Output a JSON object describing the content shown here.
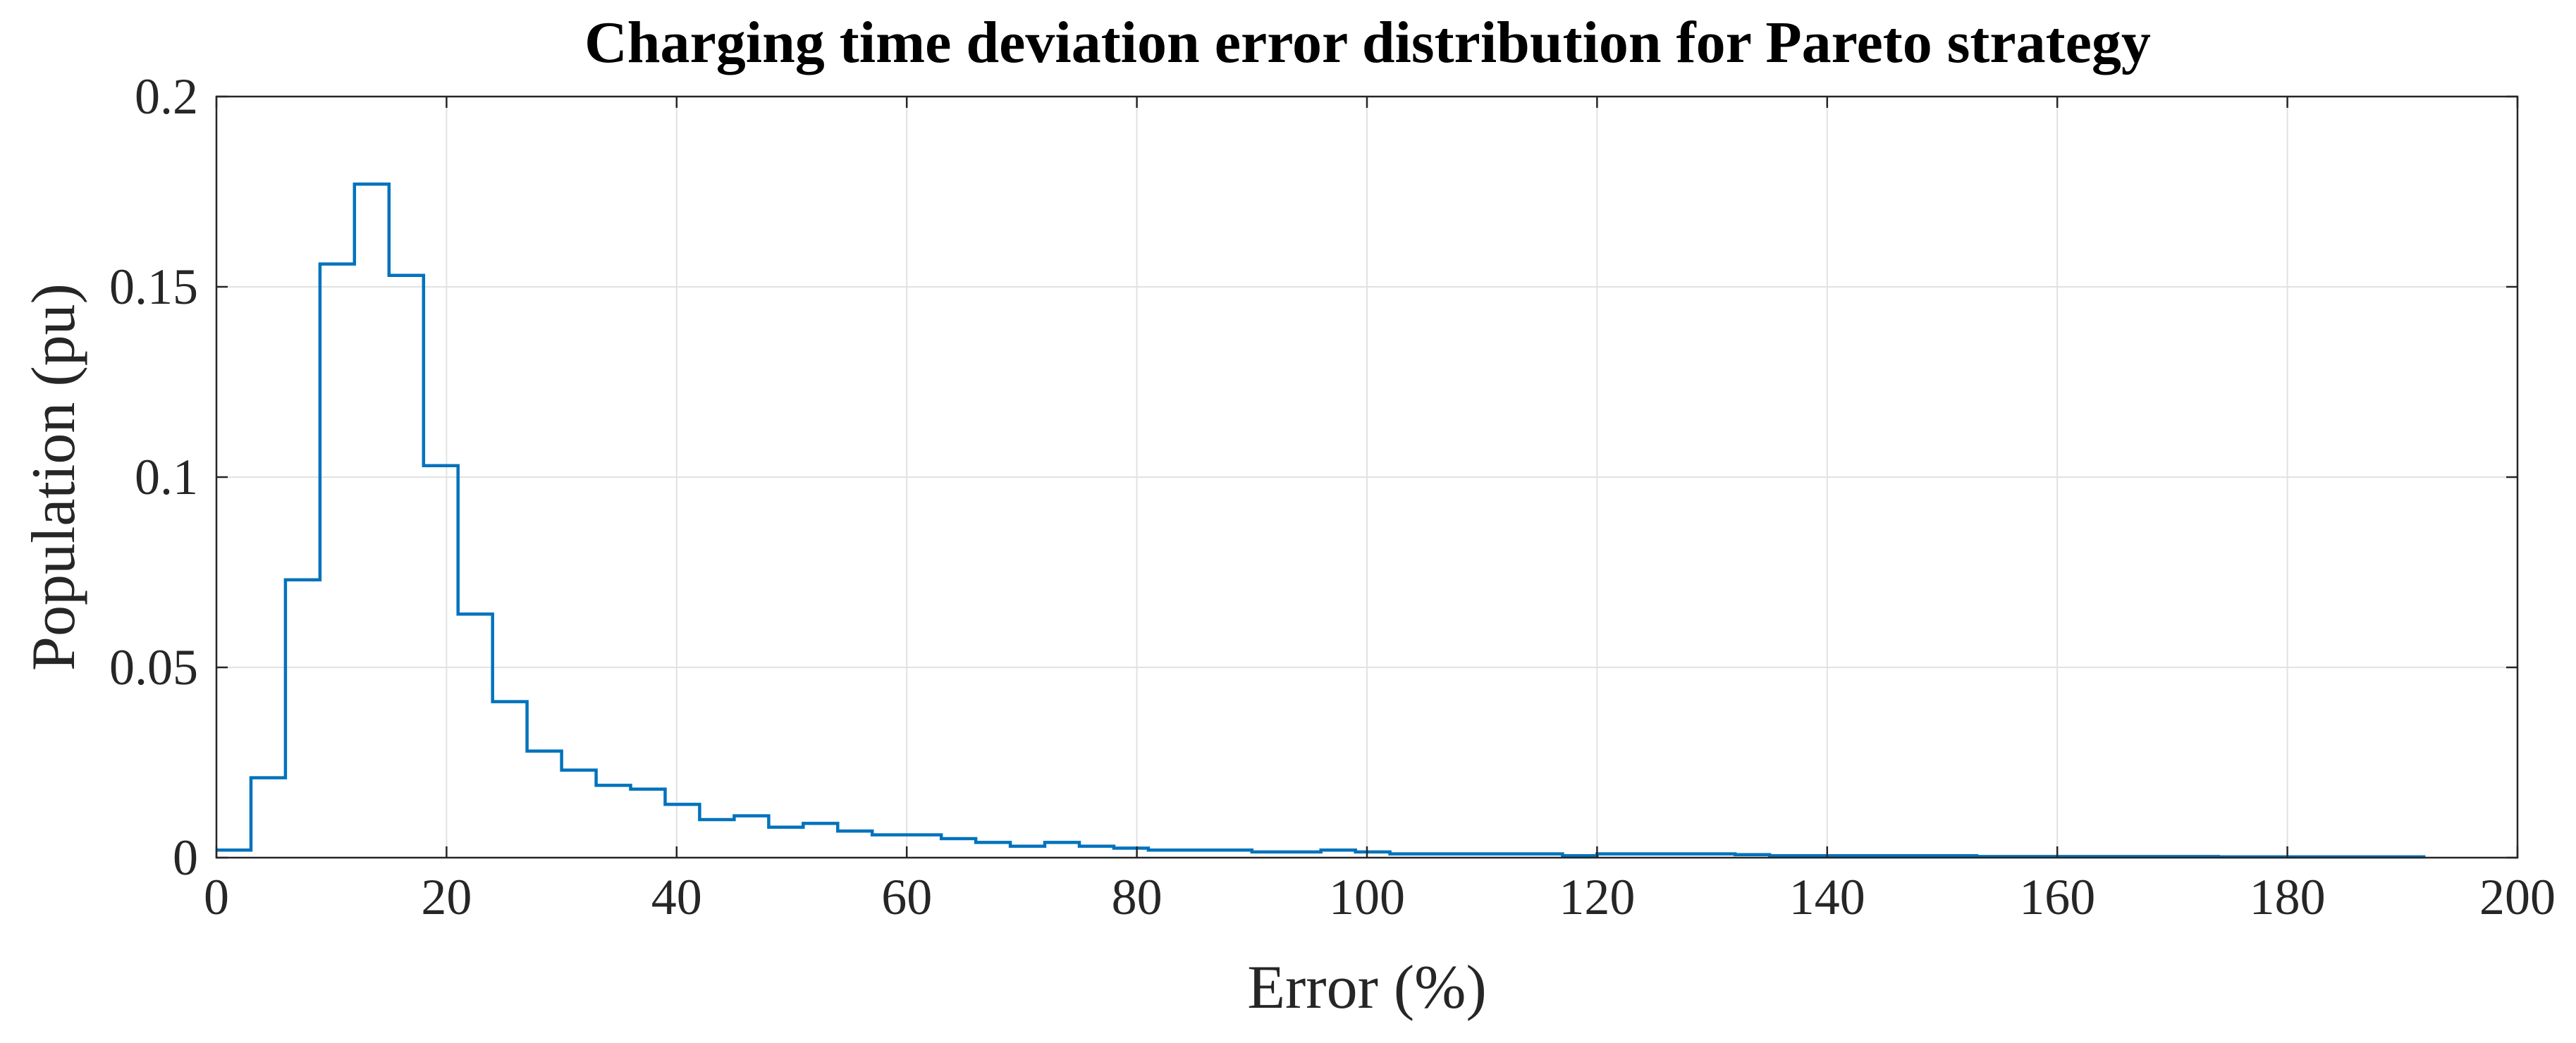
{
  "chart_data": {
    "type": "histogram",
    "style": "stairs",
    "title": "Charging time deviation error distribution for Pareto strategy",
    "xlabel": "Error (%)",
    "ylabel": "Population (pu)",
    "xlim": [
      0,
      200
    ],
    "ylim": [
      0,
      0.2
    ],
    "xticks": [
      0,
      20,
      40,
      60,
      80,
      100,
      120,
      140,
      160,
      180,
      200
    ],
    "yticks": [
      0,
      0.05,
      0.1,
      0.15,
      0.2
    ],
    "xtick_labels": [
      "0",
      "20",
      "40",
      "60",
      "80",
      "100",
      "120",
      "140",
      "160",
      "180",
      "200"
    ],
    "ytick_labels": [
      "0",
      "0.05",
      "0.1",
      "0.15",
      "0.2"
    ],
    "grid": true,
    "line_color": "#0072bd",
    "bin_start": 0,
    "bin_width": 3,
    "values": [
      0.002,
      0.021,
      0.073,
      0.156,
      0.177,
      0.153,
      0.103,
      0.064,
      0.041,
      0.028,
      0.023,
      0.019,
      0.018,
      0.014,
      0.01,
      0.011,
      0.008,
      0.009,
      0.007,
      0.006,
      0.006,
      0.005,
      0.004,
      0.003,
      0.004,
      0.003,
      0.0025,
      0.002,
      0.002,
      0.002,
      0.0015,
      0.0015,
      0.002,
      0.0015,
      0.001,
      0.001,
      0.001,
      0.001,
      0.001,
      0.0005,
      0.001,
      0.001,
      0.001,
      0.001,
      0.0008,
      0.0005,
      0.0005,
      0.0005,
      0.0005,
      0.0005,
      0.0005,
      0.0003,
      0.0003,
      0.0003,
      0.0003,
      0.0003,
      0.0003,
      0.0003,
      0.0002,
      0.0002,
      0.0002,
      0.0002,
      0.0002,
      0.0002
    ]
  }
}
